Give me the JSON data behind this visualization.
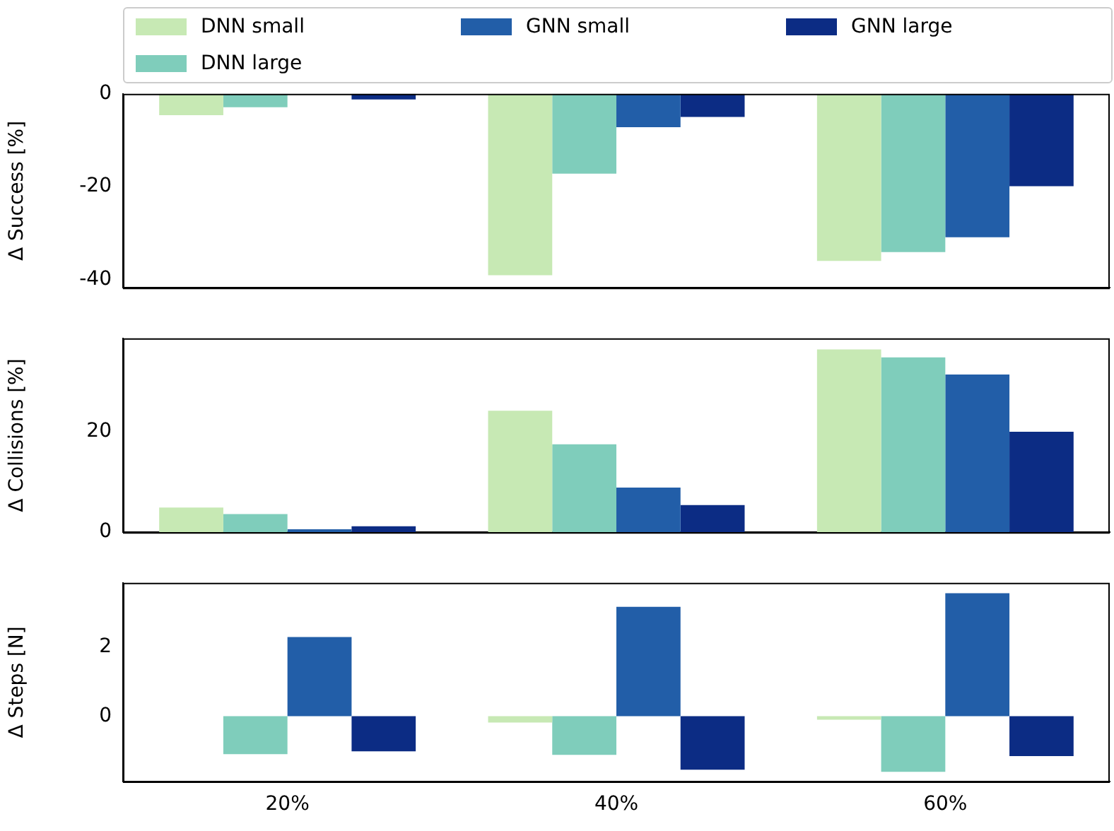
{
  "chart_data": [
    {
      "type": "bar",
      "ylabel": "Δ Success [%]",
      "categories": [
        null,
        null,
        null
      ],
      "legend": "top",
      "tick_labels": "y",
      "ylim": [
        -41.8,
        0
      ],
      "yticks": [
        -40,
        -20,
        0
      ],
      "series": [
        {
          "name": "DNN small",
          "color": "#c7e9b4",
          "values": [
            -4.6,
            -39.1,
            -36.0
          ]
        },
        {
          "name": "DNN large",
          "color": "#7fcdbb",
          "values": [
            -2.9,
            -17.2,
            -34.1
          ]
        },
        {
          "name": "GNN small",
          "color": "#225ea8",
          "values": [
            0,
            -7.2,
            -30.9
          ]
        },
        {
          "name": "GNN large",
          "color": "#0c2c84",
          "values": [
            -1.2,
            -5.0,
            -19.9
          ]
        }
      ]
    },
    {
      "type": "bar",
      "ylabel": "Δ Collisions [%]",
      "categories": [
        null,
        null,
        null
      ],
      "tick_labels": "y",
      "ylim": [
        0,
        38.6
      ],
      "yticks": [
        0,
        20
      ],
      "series": [
        {
          "color": "#c7e9b4",
          "values": [
            4.9,
            24.2,
            36.4
          ]
        },
        {
          "color": "#7fcdbb",
          "values": [
            3.6,
            17.5,
            34.8
          ]
        },
        {
          "color": "#225ea8",
          "values": [
            0.6,
            8.9,
            31.4
          ]
        },
        {
          "color": "#0c2c84",
          "values": [
            1.2,
            5.4,
            20.0
          ]
        }
      ]
    },
    {
      "type": "bar",
      "ylabel": "Δ Steps [N]",
      "categories": [
        "20%",
        "40%",
        "60%"
      ],
      "ylim": [
        -1.88,
        3.84
      ],
      "yticks": [
        0,
        2
      ],
      "series": [
        {
          "color": "#c7e9b4",
          "values": [
            0,
            -0.18,
            -0.1
          ]
        },
        {
          "color": "#7fcdbb",
          "values": [
            -1.09,
            -1.11,
            -1.6
          ]
        },
        {
          "color": "#225ea8",
          "values": [
            2.28,
            3.15,
            3.54
          ]
        },
        {
          "color": "#0c2c84",
          "values": [
            -1.01,
            -1.54,
            -1.15
          ]
        }
      ]
    }
  ]
}
